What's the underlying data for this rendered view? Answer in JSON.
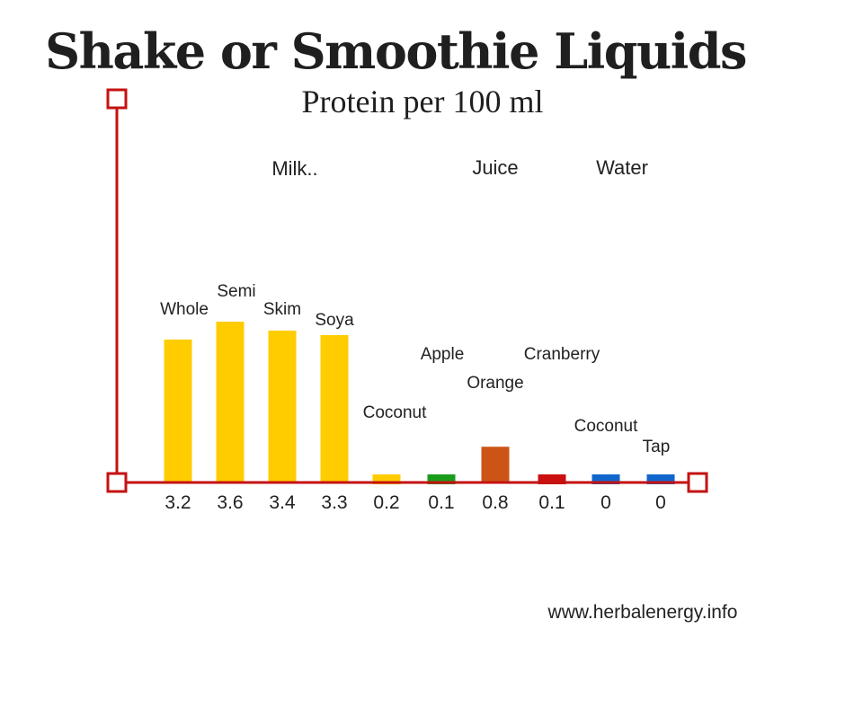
{
  "title": "Shake or Smoothie Liquids",
  "subtitle": "Protein per 100 ml",
  "website": "www.herbalenergy.info",
  "chart_data": {
    "type": "bar",
    "title": "Shake or Smoothie Liquids",
    "subtitle": "Protein per 100 ml",
    "xlabel": "",
    "ylabel": "",
    "ylim": [
      0,
      3.6
    ],
    "grid": false,
    "groups": [
      "Milk..",
      "Juice",
      "Water"
    ],
    "categories": [
      "Whole",
      "Semi",
      "Skim",
      "Soya",
      "Coconut",
      "Apple",
      "Orange",
      "Cranberry",
      "Coconut",
      "Tap"
    ],
    "value_labels": [
      "3.2",
      "3.6",
      "3.4",
      "3.3",
      "0.2",
      "0.1",
      "0.8",
      "0.1",
      "0",
      "0"
    ],
    "values": [
      3.2,
      3.6,
      3.4,
      3.3,
      0.2,
      0.1,
      0.8,
      0.1,
      0,
      0
    ],
    "bar_group": [
      "Milk..",
      "Milk..",
      "Milk..",
      "Milk..",
      "Milk..",
      "Juice",
      "Juice",
      "Juice",
      "Water",
      "Water"
    ],
    "colors": [
      "#ffcc00",
      "#ffcc00",
      "#ffcc00",
      "#ffcc00",
      "#ffcc00",
      "#1a9c1a",
      "#cc5516",
      "#cc1010",
      "#1166cc",
      "#1166cc"
    ],
    "axis_color": "#c41212"
  }
}
